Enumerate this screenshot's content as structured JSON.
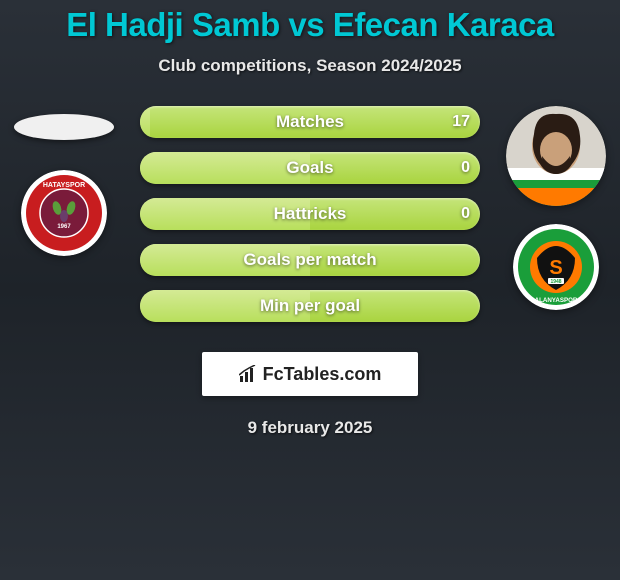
{
  "title": "El Hadji Samb vs Efecan Karaca",
  "subtitle": "Club competitions, Season 2024/2025",
  "date": "9 february 2025",
  "brand": "FcTables.com",
  "colors": {
    "accent": "#00c8d4",
    "bar_light": "#c5e57a",
    "bar_dark": "#a9d43f",
    "bg_top": "#2a3038",
    "bg_mid": "#1e2329",
    "hatay_ring": "#c81d1f",
    "hatay_inner": "#7a1b3a",
    "alanya_green": "#1a9e3a",
    "alanya_orange": "#ff7a00",
    "alanya_black": "#111111"
  },
  "player_left": {
    "name": "El Hadji Samb",
    "club": "Hatayspor"
  },
  "player_right": {
    "name": "Efecan Karaca",
    "club": "Alanyaspor"
  },
  "bars": [
    {
      "label": "Matches",
      "left": "",
      "right": "17",
      "fill_pct": 3
    },
    {
      "label": "Goals",
      "left": "",
      "right": "0",
      "fill_pct": 50
    },
    {
      "label": "Hattricks",
      "left": "",
      "right": "0",
      "fill_pct": 50
    },
    {
      "label": "Goals per match",
      "left": "",
      "right": "",
      "fill_pct": 50
    },
    {
      "label": "Min per goal",
      "left": "",
      "right": "",
      "fill_pct": 50
    }
  ]
}
